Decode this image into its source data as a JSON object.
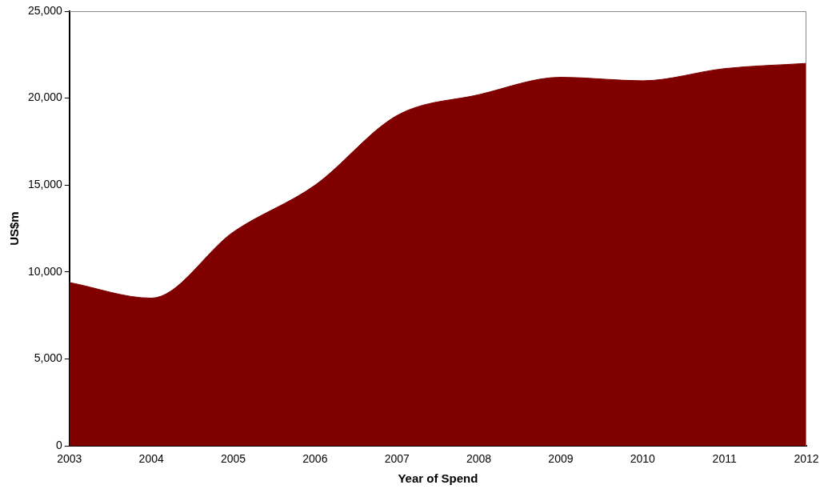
{
  "chart_data": {
    "type": "area",
    "xlabel": "Year of Spend",
    "ylabel": "US$m",
    "x": [
      2003,
      2004,
      2005,
      2006,
      2007,
      2008,
      2009,
      2010,
      2011,
      2012
    ],
    "values": [
      9400,
      8500,
      12300,
      15000,
      19000,
      20200,
      21200,
      21000,
      21700,
      22000
    ],
    "color": "#800000",
    "xlim": [
      2003,
      2012
    ],
    "xticks": [
      2003,
      2004,
      2005,
      2006,
      2007,
      2008,
      2009,
      2010,
      2011,
      2012
    ],
    "ylim": [
      0,
      25000
    ],
    "yticks": [
      {
        "value": 0,
        "label": "0"
      },
      {
        "value": 5000,
        "label": "5,000"
      },
      {
        "value": 10000,
        "label": "10,000"
      },
      {
        "value": 15000,
        "label": "15,000"
      },
      {
        "value": 20000,
        "label": "20,000"
      },
      {
        "value": 25000,
        "label": "25,000"
      }
    ],
    "grid": false,
    "legend": false
  }
}
